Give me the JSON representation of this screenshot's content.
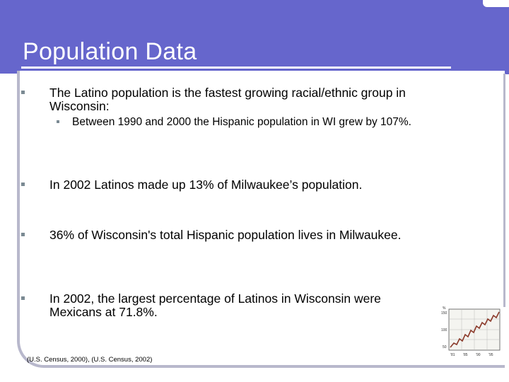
{
  "slide": {
    "title": "Population Data",
    "bullets": [
      {
        "text": "The Latino population is the fastest growing racial/ethnic group in Wisconsin:",
        "sub": "Between 1990 and 2000 the Hispanic population in WI grew by 107%."
      },
      {
        "text": "In 2002 Latinos made up 13% of Milwaukee’s population."
      },
      {
        "text": "36% of Wisconsin's total Hispanic population lives in Milwaukee."
      },
      {
        "text": "In 2002, the largest percentage of Latinos in Wisconsin were Mexicans at 71.8%."
      }
    ],
    "citation": "(U.S. Census, 2000), (U.S. Census, 2002)"
  },
  "chart_icon": {
    "icon": "line-chart-icon",
    "y_ticks": [
      "150",
      "100",
      "50"
    ],
    "x_ticks": [
      "'81",
      "'85",
      "'90",
      "'95"
    ],
    "y_extra": "%"
  },
  "theme": {
    "header": "#6666cc",
    "accent": "#b8b8cc",
    "line": "#8b3a2a"
  }
}
